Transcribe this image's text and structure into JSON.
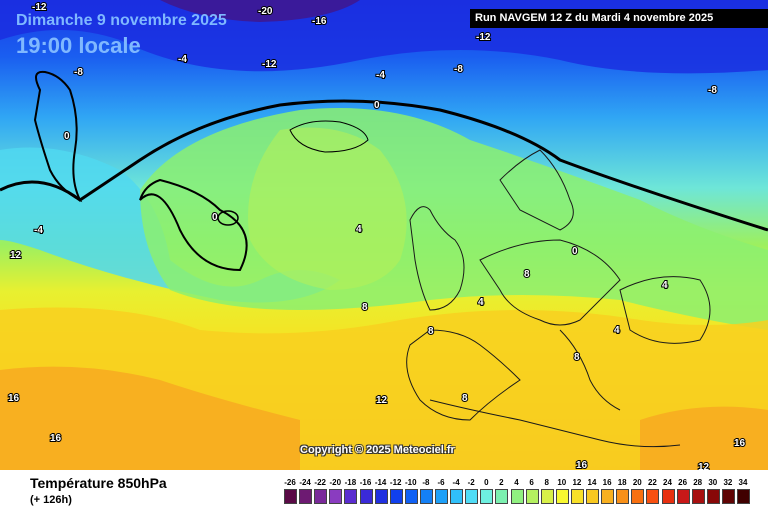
{
  "header": {
    "date": "Dimanche 9 novembre 2025",
    "time": "19:00 locale",
    "run": "Run NAVGEM 12 Z du Mardi 4 novembre 2025"
  },
  "copyright": "Copyright © 2025 Meteociel.fr",
  "footer": {
    "parameter": "Température 850hPa",
    "lead_time": "(+ 126h)"
  },
  "isotherm_labels": [
    "-20",
    "-16",
    "-12",
    "-12",
    "-8",
    "-4",
    "-12",
    "-4",
    "-8",
    "-8",
    "0",
    "0",
    "0",
    "-4",
    "4",
    "0",
    "8",
    "8",
    "8",
    "4",
    "4",
    "4",
    "8",
    "12",
    "8",
    "16",
    "16",
    "16",
    "12",
    "16",
    "12"
  ],
  "scale": {
    "values": [
      "-26",
      "-24",
      "-22",
      "-20",
      "-18",
      "-16",
      "-14",
      "-12",
      "-10",
      "-8",
      "-6",
      "-4",
      "-2",
      "0",
      "2",
      "4",
      "6",
      "8",
      "10",
      "12",
      "14",
      "16",
      "18",
      "20",
      "22",
      "24",
      "26",
      "28",
      "30",
      "32",
      "34"
    ],
    "colors": [
      "#5a0a46",
      "#6d1a72",
      "#7a2a9a",
      "#8a3cc0",
      "#5a2cd0",
      "#3a2ad8",
      "#2030e0",
      "#1040ee",
      "#1060f4",
      "#1480f6",
      "#1ea0f8",
      "#30c0fa",
      "#50dcf6",
      "#6ef0e0",
      "#7cf0b0",
      "#90f080",
      "#b4f060",
      "#d8f048",
      "#f8f830",
      "#f8e028",
      "#f8c820",
      "#f8b020",
      "#f89018",
      "#f87010",
      "#f85010",
      "#e83010",
      "#c81818",
      "#a81010",
      "#880808",
      "#600404",
      "#400000"
    ],
    "colors_label": "color scale swatches"
  }
}
